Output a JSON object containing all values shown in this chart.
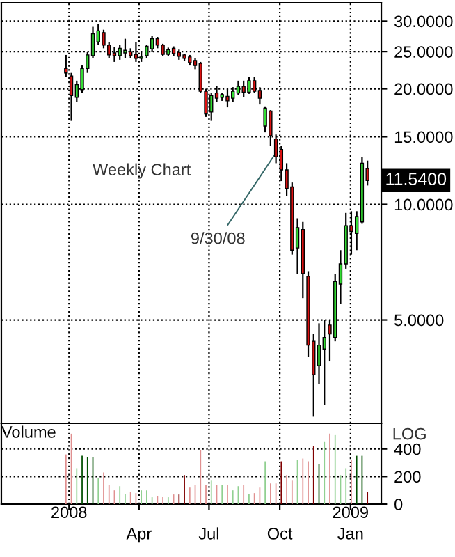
{
  "chart_data": [
    {
      "type": "candlestick",
      "tick_labels": "y",
      "log": true,
      "grid": true,
      "x": [
        "2007-12-28",
        "2008-01-04",
        "2008-01-11",
        "2008-01-18",
        "2008-01-25",
        "2008-02-01",
        "2008-02-08",
        "2008-02-15",
        "2008-02-22",
        "2008-02-29",
        "2008-03-07",
        "2008-03-14",
        "2008-03-21",
        "2008-03-28",
        "2008-04-04",
        "2008-04-11",
        "2008-04-18",
        "2008-04-25",
        "2008-05-02",
        "2008-05-09",
        "2008-05-16",
        "2008-05-23",
        "2008-05-30",
        "2008-06-06",
        "2008-06-13",
        "2008-06-20",
        "2008-06-27",
        "2008-07-04",
        "2008-07-11",
        "2008-07-18",
        "2008-07-25",
        "2008-08-01",
        "2008-08-08",
        "2008-08-15",
        "2008-08-22",
        "2008-08-29",
        "2008-09-05",
        "2008-09-12",
        "2008-09-19",
        "2008-09-26",
        "2008-10-03",
        "2008-10-10",
        "2008-10-17",
        "2008-10-24",
        "2008-10-31",
        "2008-11-07",
        "2008-11-14",
        "2008-11-21",
        "2008-11-28",
        "2008-12-05",
        "2008-12-12",
        "2008-12-19",
        "2008-12-26",
        "2009-01-02",
        "2009-01-09",
        "2009-01-16",
        "2009-01-23"
      ],
      "ohlc": [
        [
          22.6,
          24.5,
          21.5,
          22.0
        ],
        [
          21.6,
          22,
          16.5,
          19.2
        ],
        [
          19.0,
          21,
          18.5,
          20.5
        ],
        [
          19.9,
          23,
          19.5,
          22.6
        ],
        [
          22.6,
          25,
          22,
          24.5
        ],
        [
          24.4,
          29,
          24,
          27.8
        ],
        [
          26.5,
          29.5,
          26,
          28.3
        ],
        [
          28,
          28.5,
          25.5,
          26
        ],
        [
          26,
          26.5,
          24,
          24.5
        ],
        [
          24.8,
          25.7,
          23.5,
          24.4
        ],
        [
          24.4,
          26,
          23.8,
          25.5
        ],
        [
          24.8,
          27,
          24,
          25.2
        ],
        [
          25,
          25.5,
          24,
          24.4
        ],
        [
          24.6,
          26.5,
          23.5,
          24
        ],
        [
          24,
          25,
          23.5,
          24.2
        ],
        [
          24.4,
          26,
          24,
          25.8
        ],
        [
          25.4,
          27.5,
          25,
          27
        ],
        [
          27,
          27.3,
          25.5,
          26
        ],
        [
          26,
          26.2,
          24.3,
          24.6
        ],
        [
          24.6,
          25.6,
          24.3,
          25.3
        ],
        [
          25.5,
          25.8,
          24.3,
          24.7
        ],
        [
          24.9,
          25.3,
          23.8,
          24.3
        ],
        [
          24.5,
          24.7,
          23.6,
          24
        ],
        [
          24.2,
          24.5,
          23,
          23.4
        ],
        [
          23.7,
          24,
          22.5,
          23
        ],
        [
          23.3,
          23.5,
          19.5,
          19.7
        ],
        [
          19.7,
          20,
          16.9,
          17.2
        ],
        [
          17.4,
          19.5,
          16.5,
          19.2
        ],
        [
          19.5,
          20.3,
          18.5,
          18.9
        ],
        [
          19,
          19.5,
          18.6,
          19.3
        ],
        [
          19.1,
          20,
          17.9,
          18.6
        ],
        [
          18.9,
          20.2,
          18.5,
          19.7
        ],
        [
          19.5,
          21,
          19.3,
          20.3
        ],
        [
          20.3,
          21,
          19,
          19.6
        ],
        [
          19.6,
          21.5,
          19.4,
          21
        ],
        [
          21,
          21.5,
          19.5,
          19.7
        ],
        [
          19.8,
          20.2,
          18.2,
          18.9
        ],
        [
          16,
          18,
          15.4,
          17.8
        ],
        [
          17.5,
          17.6,
          14.2,
          15.1
        ],
        [
          14.8,
          15.2,
          12.8,
          13.3
        ],
        [
          13.9,
          14.2,
          11.5,
          12.3
        ],
        [
          12.3,
          12.8,
          10.5,
          11.0
        ],
        [
          11.1,
          11.4,
          7.4,
          7.6
        ],
        [
          7.7,
          9.2,
          6.6,
          8.7
        ],
        [
          8.6,
          9.0,
          5.7,
          6.6
        ],
        [
          6.5,
          6.7,
          4.0,
          4.3
        ],
        [
          4.4,
          4.6,
          2.8,
          3.6
        ],
        [
          3.8,
          4.9,
          3.4,
          4.3
        ],
        [
          4.2,
          5.0,
          3.0,
          4.5
        ],
        [
          4.85,
          5.0,
          3.9,
          4.6
        ],
        [
          4.5,
          6.6,
          4.4,
          6.3
        ],
        [
          6.2,
          7.6,
          5.5,
          7.0
        ],
        [
          7.0,
          9.5,
          6.8,
          8.8
        ],
        [
          8.8,
          9.6,
          7.4,
          8.5
        ],
        [
          8.4,
          9.6,
          7.6,
          9.3
        ],
        [
          9.0,
          13.3,
          8.9,
          12.8
        ],
        [
          12.4,
          13.0,
          11.2,
          11.54
        ]
      ],
      "colors": [
        "#dd1111",
        "#dd1111",
        "#33dd33",
        "#33dd33",
        "#33dd33",
        "#33dd33",
        "#33dd33",
        "#dd1111",
        "#dd1111",
        "#dd1111",
        "#33dd33",
        "#33dd33",
        "#dd1111",
        "#dd1111",
        "#33dd33",
        "#33dd33",
        "#33dd33",
        "#dd1111",
        "#dd1111",
        "#33dd33",
        "#dd1111",
        "#dd1111",
        "#dd1111",
        "#dd1111",
        "#dd1111",
        "#dd1111",
        "#dd1111",
        "#33dd33",
        "#dd1111",
        "#33dd33",
        "#dd1111",
        "#33dd33",
        "#33dd33",
        "#dd1111",
        "#33dd33",
        "#dd1111",
        "#dd1111",
        "#33dd33",
        "#dd1111",
        "#dd1111",
        "#dd1111",
        "#dd1111",
        "#dd1111",
        "#33dd33",
        "#dd1111",
        "#dd1111",
        "#dd1111",
        "#33dd33",
        "#33dd33",
        "#dd1111",
        "#33dd33",
        "#33dd33",
        "#33dd33",
        "#dd1111",
        "#33dd33",
        "#33dd33",
        "#dd1111"
      ],
      "xlim": [
        "2007-10-05",
        "2009-02-10"
      ],
      "xticks": [
        {
          "value": "2008-01-01",
          "label": null
        },
        {
          "value": "2008-04-01",
          "label": null
        },
        {
          "value": "2008-07-01",
          "label": null
        },
        {
          "value": "2008-10-01",
          "label": null
        },
        {
          "value": "2009-01-01",
          "label": null
        }
      ],
      "ylim": [
        2.69,
        33.5
      ],
      "yticks": [
        {
          "value": 5,
          "label": "5.0000"
        },
        {
          "value": 10,
          "label": "10.0000"
        },
        {
          "value": 15,
          "label": "15.0000"
        },
        {
          "value": 20,
          "label": "20.0000"
        },
        {
          "value": 25,
          "label": "25.0000"
        },
        {
          "value": 30,
          "label": "30.0000"
        }
      ],
      "annotations": [
        "Weekly Chart",
        {
          "text": "9/30/08",
          "x": "2008-09-30",
          "y": 14.0
        },
        {
          "text": "11.5400",
          "x": "2009-01-23",
          "y": 11.54
        },
        "LOG"
      ]
    },
    {
      "type": "bar",
      "title": "Volume",
      "grid": true,
      "x": [
        "2007-12-28",
        "2008-01-04",
        "2008-01-11",
        "2008-01-18",
        "2008-01-25",
        "2008-02-01",
        "2008-02-08",
        "2008-02-15",
        "2008-02-22",
        "2008-02-29",
        "2008-03-07",
        "2008-03-14",
        "2008-03-21",
        "2008-03-28",
        "2008-04-04",
        "2008-04-11",
        "2008-04-18",
        "2008-04-25",
        "2008-05-02",
        "2008-05-09",
        "2008-05-16",
        "2008-05-23",
        "2008-05-30",
        "2008-06-06",
        "2008-06-13",
        "2008-06-20",
        "2008-06-27",
        "2008-07-04",
        "2008-07-11",
        "2008-07-18",
        "2008-07-25",
        "2008-08-01",
        "2008-08-08",
        "2008-08-15",
        "2008-08-22",
        "2008-08-29",
        "2008-09-05",
        "2008-09-12",
        "2008-09-19",
        "2008-09-26",
        "2008-10-03",
        "2008-10-10",
        "2008-10-17",
        "2008-10-24",
        "2008-10-31",
        "2008-11-07",
        "2008-11-14",
        "2008-11-21",
        "2008-11-28",
        "2008-12-05",
        "2008-12-12",
        "2008-12-19",
        "2008-12-26",
        "2009-01-02",
        "2009-01-09",
        "2009-01-16",
        "2009-01-23"
      ],
      "values": [
        360,
        510,
        260,
        350,
        340,
        340,
        190,
        230,
        140,
        100,
        130,
        70,
        90,
        80,
        100,
        100,
        50,
        60,
        50,
        50,
        70,
        70,
        210,
        120,
        140,
        390,
        140,
        170,
        140,
        140,
        140,
        100,
        130,
        140,
        70,
        80,
        120,
        310,
        150,
        150,
        310,
        210,
        170,
        320,
        330,
        310,
        420,
        290,
        450,
        510,
        500,
        210,
        260,
        320,
        350,
        350,
        90
      ],
      "colors": [
        "#e09090",
        "#e09090",
        "#90d090",
        "#005000",
        "#005000",
        "#005000",
        "#90d090",
        "#e09090",
        "#e09090",
        "#e09090",
        "#90d090",
        "#90d090",
        "#e09090",
        "#e09090",
        "#90d090",
        "#90d090",
        "#90d090",
        "#e09090",
        "#e09090",
        "#90d090",
        "#e09090",
        "#800000",
        "#800000",
        "#e09090",
        "#e09090",
        "#e09090",
        "#e09090",
        "#90d090",
        "#e09090",
        "#90d090",
        "#e09090",
        "#90d090",
        "#90d090",
        "#e09090",
        "#90d090",
        "#e09090",
        "#e09090",
        "#90d090",
        "#e09090",
        "#e09090",
        "#800000",
        "#e09090",
        "#e09090",
        "#90d090",
        "#e09090",
        "#e09090",
        "#800000",
        "#005000",
        "#90d090",
        "#e09090",
        "#90d090",
        "#90d090",
        "#90d090",
        "#e09090",
        "#005000",
        "#005000",
        "#800000"
      ],
      "xlim": [
        "2007-10-05",
        "2009-02-10"
      ],
      "xticks": [
        {
          "value": "2008-01-01",
          "label": null
        },
        {
          "value": "2008-04-01",
          "label": "Apr"
        },
        {
          "value": "2008-07-01",
          "label": "Jul"
        },
        {
          "value": "2008-10-01",
          "label": "Oct"
        },
        {
          "value": "2009-01-01",
          "label": "Jan"
        }
      ],
      "annotations": [
        "2008",
        "2009"
      ],
      "ylim": [
        0,
        585
      ],
      "yticks": [
        0,
        200,
        400
      ]
    }
  ]
}
